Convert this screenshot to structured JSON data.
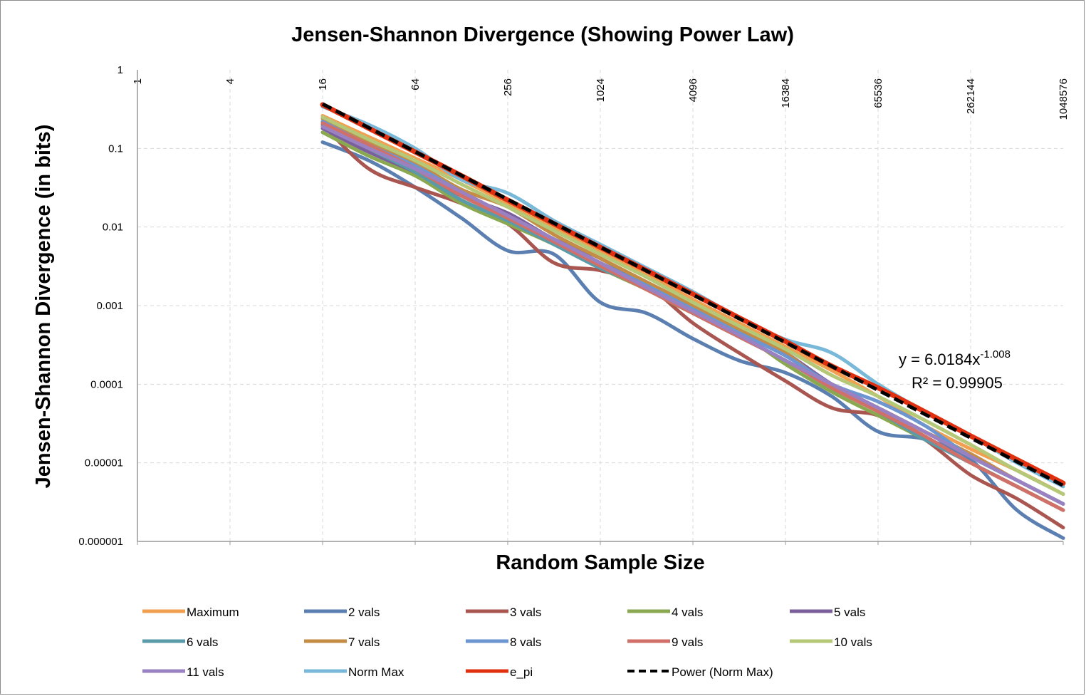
{
  "chart_data": {
    "type": "line",
    "title": "Jensen-Shannon Divergence (Showing Power Law)",
    "xlabel": "Random Sample Size",
    "ylabel": "Jensen-Shannon  Divergence (in bits)",
    "x_scale": "log2",
    "y_scale": "log10",
    "x_ticks": [
      "1",
      "4",
      "16",
      "64",
      "256",
      "1024",
      "4096",
      "16384",
      "65536",
      "262144",
      "1048576"
    ],
    "y_ticks": [
      "1",
      "0.1",
      "0.01",
      "0.001",
      "0.0001",
      "0.00001",
      "0.000001"
    ],
    "xlim": [
      1,
      1048576
    ],
    "ylim": [
      1e-06,
      1
    ],
    "grid": true,
    "legend_position": "bottom",
    "x": [
      16,
      32,
      64,
      128,
      256,
      512,
      1024,
      2048,
      4096,
      8192,
      16384,
      32768,
      65536,
      131072,
      262144,
      524288,
      1048576
    ],
    "series": [
      {
        "name": "Maximum",
        "color": "#f0a050",
        "values": [
          0.26,
          0.14,
          0.075,
          0.04,
          0.02,
          0.01,
          0.005,
          0.0025,
          0.0012,
          0.0006,
          0.0003,
          0.00015,
          7e-05,
          3e-05,
          1.5e-05,
          8e-06,
          4e-06
        ]
      },
      {
        "name": "2 vals",
        "color": "#5b7fb0",
        "values": [
          0.12,
          0.07,
          0.032,
          0.013,
          0.005,
          0.0045,
          0.0011,
          0.0008,
          0.00038,
          0.0002,
          0.00014,
          7e-05,
          2.5e-05,
          2e-05,
          1.1e-05,
          2.5e-06,
          1.1e-06
        ]
      },
      {
        "name": "3 vals",
        "color": "#a95550",
        "values": [
          0.2,
          0.055,
          0.032,
          0.02,
          0.011,
          0.0035,
          0.0028,
          0.0018,
          0.0006,
          0.00025,
          0.00011,
          5e-05,
          4e-05,
          2e-05,
          7e-06,
          3.5e-06,
          1.5e-06
        ]
      },
      {
        "name": "4 vals",
        "color": "#8aa850",
        "values": [
          0.16,
          0.08,
          0.045,
          0.02,
          0.011,
          0.006,
          0.003,
          0.0016,
          0.0008,
          0.00045,
          0.00018,
          8e-05,
          4e-05,
          2e-05,
          1e-05,
          5e-06,
          2.5e-06
        ]
      },
      {
        "name": "5 vals",
        "color": "#7a5f9b",
        "values": [
          0.18,
          0.09,
          0.05,
          0.025,
          0.015,
          0.007,
          0.004,
          0.0018,
          0.0009,
          0.0005,
          0.00025,
          0.0001,
          5e-05,
          2.5e-05,
          1.2e-05,
          6e-06,
          3e-06
        ]
      },
      {
        "name": "6 vals",
        "color": "#5b9aa8",
        "values": [
          0.22,
          0.1,
          0.05,
          0.022,
          0.012,
          0.006,
          0.003,
          0.0017,
          0.0008,
          0.0004,
          0.0002,
          9e-05,
          4.5e-05,
          2e-05,
          1e-05,
          5e-06,
          2.5e-06
        ]
      },
      {
        "name": "7 vals",
        "color": "#c58c45",
        "values": [
          0.24,
          0.12,
          0.065,
          0.03,
          0.018,
          0.008,
          0.004,
          0.002,
          0.001,
          0.0005,
          0.00025,
          9e-05,
          5e-05,
          2.5e-05,
          1.3e-05,
          6e-06,
          3e-06
        ]
      },
      {
        "name": "8 vals",
        "color": "#6d95cf",
        "values": [
          0.22,
          0.11,
          0.06,
          0.028,
          0.014,
          0.007,
          0.0035,
          0.0018,
          0.0009,
          0.00045,
          0.00023,
          0.0001,
          6e-05,
          3e-05,
          1.2e-05,
          6e-06,
          3e-06
        ]
      },
      {
        "name": "9 vals",
        "color": "#d07068",
        "values": [
          0.21,
          0.11,
          0.055,
          0.025,
          0.013,
          0.0065,
          0.0032,
          0.0016,
          0.0008,
          0.0004,
          0.0002,
          9e-05,
          4.5e-05,
          2.2e-05,
          1e-05,
          5e-06,
          2.5e-06
        ]
      },
      {
        "name": "10 vals",
        "color": "#b5c878",
        "values": [
          0.25,
          0.13,
          0.07,
          0.035,
          0.018,
          0.009,
          0.0045,
          0.0023,
          0.0011,
          0.00055,
          0.00028,
          0.00013,
          7e-05,
          3.5e-05,
          1.7e-05,
          8e-06,
          4e-06
        ]
      },
      {
        "name": "11 vals",
        "color": "#9a82c2",
        "values": [
          0.19,
          0.1,
          0.055,
          0.028,
          0.014,
          0.007,
          0.0035,
          0.0017,
          0.00085,
          0.00042,
          0.0002,
          0.0001,
          5e-05,
          2.5e-05,
          1.2e-05,
          6e-06,
          3e-06
        ]
      },
      {
        "name": "Norm Max",
        "color": "#78b8d8",
        "values": [
          0.34,
          0.2,
          0.1,
          0.04,
          0.027,
          0.012,
          0.006,
          0.003,
          0.0015,
          0.0007,
          0.00037,
          0.00025,
          0.0001,
          4.5e-05,
          2.2e-05,
          1e-05,
          5e-06
        ]
      },
      {
        "name": "e_pi",
        "color": "#e03010",
        "values": [
          0.36,
          0.18,
          0.09,
          0.045,
          0.022,
          0.011,
          0.0055,
          0.0028,
          0.0014,
          0.0007,
          0.00035,
          0.00017,
          9e-05,
          4.5e-05,
          2.2e-05,
          1.1e-05,
          5.5e-06
        ]
      },
      {
        "name": "Power (Norm Max)",
        "color": "#000000",
        "dashed": true,
        "fit": {
          "a": 6.0184,
          "b": -1.008
        }
      }
    ],
    "annotations": {
      "equation_prefix": "y = 6.0184x",
      "equation_exponent": "-1.008",
      "r_squared": "R² = 0.99905"
    }
  }
}
